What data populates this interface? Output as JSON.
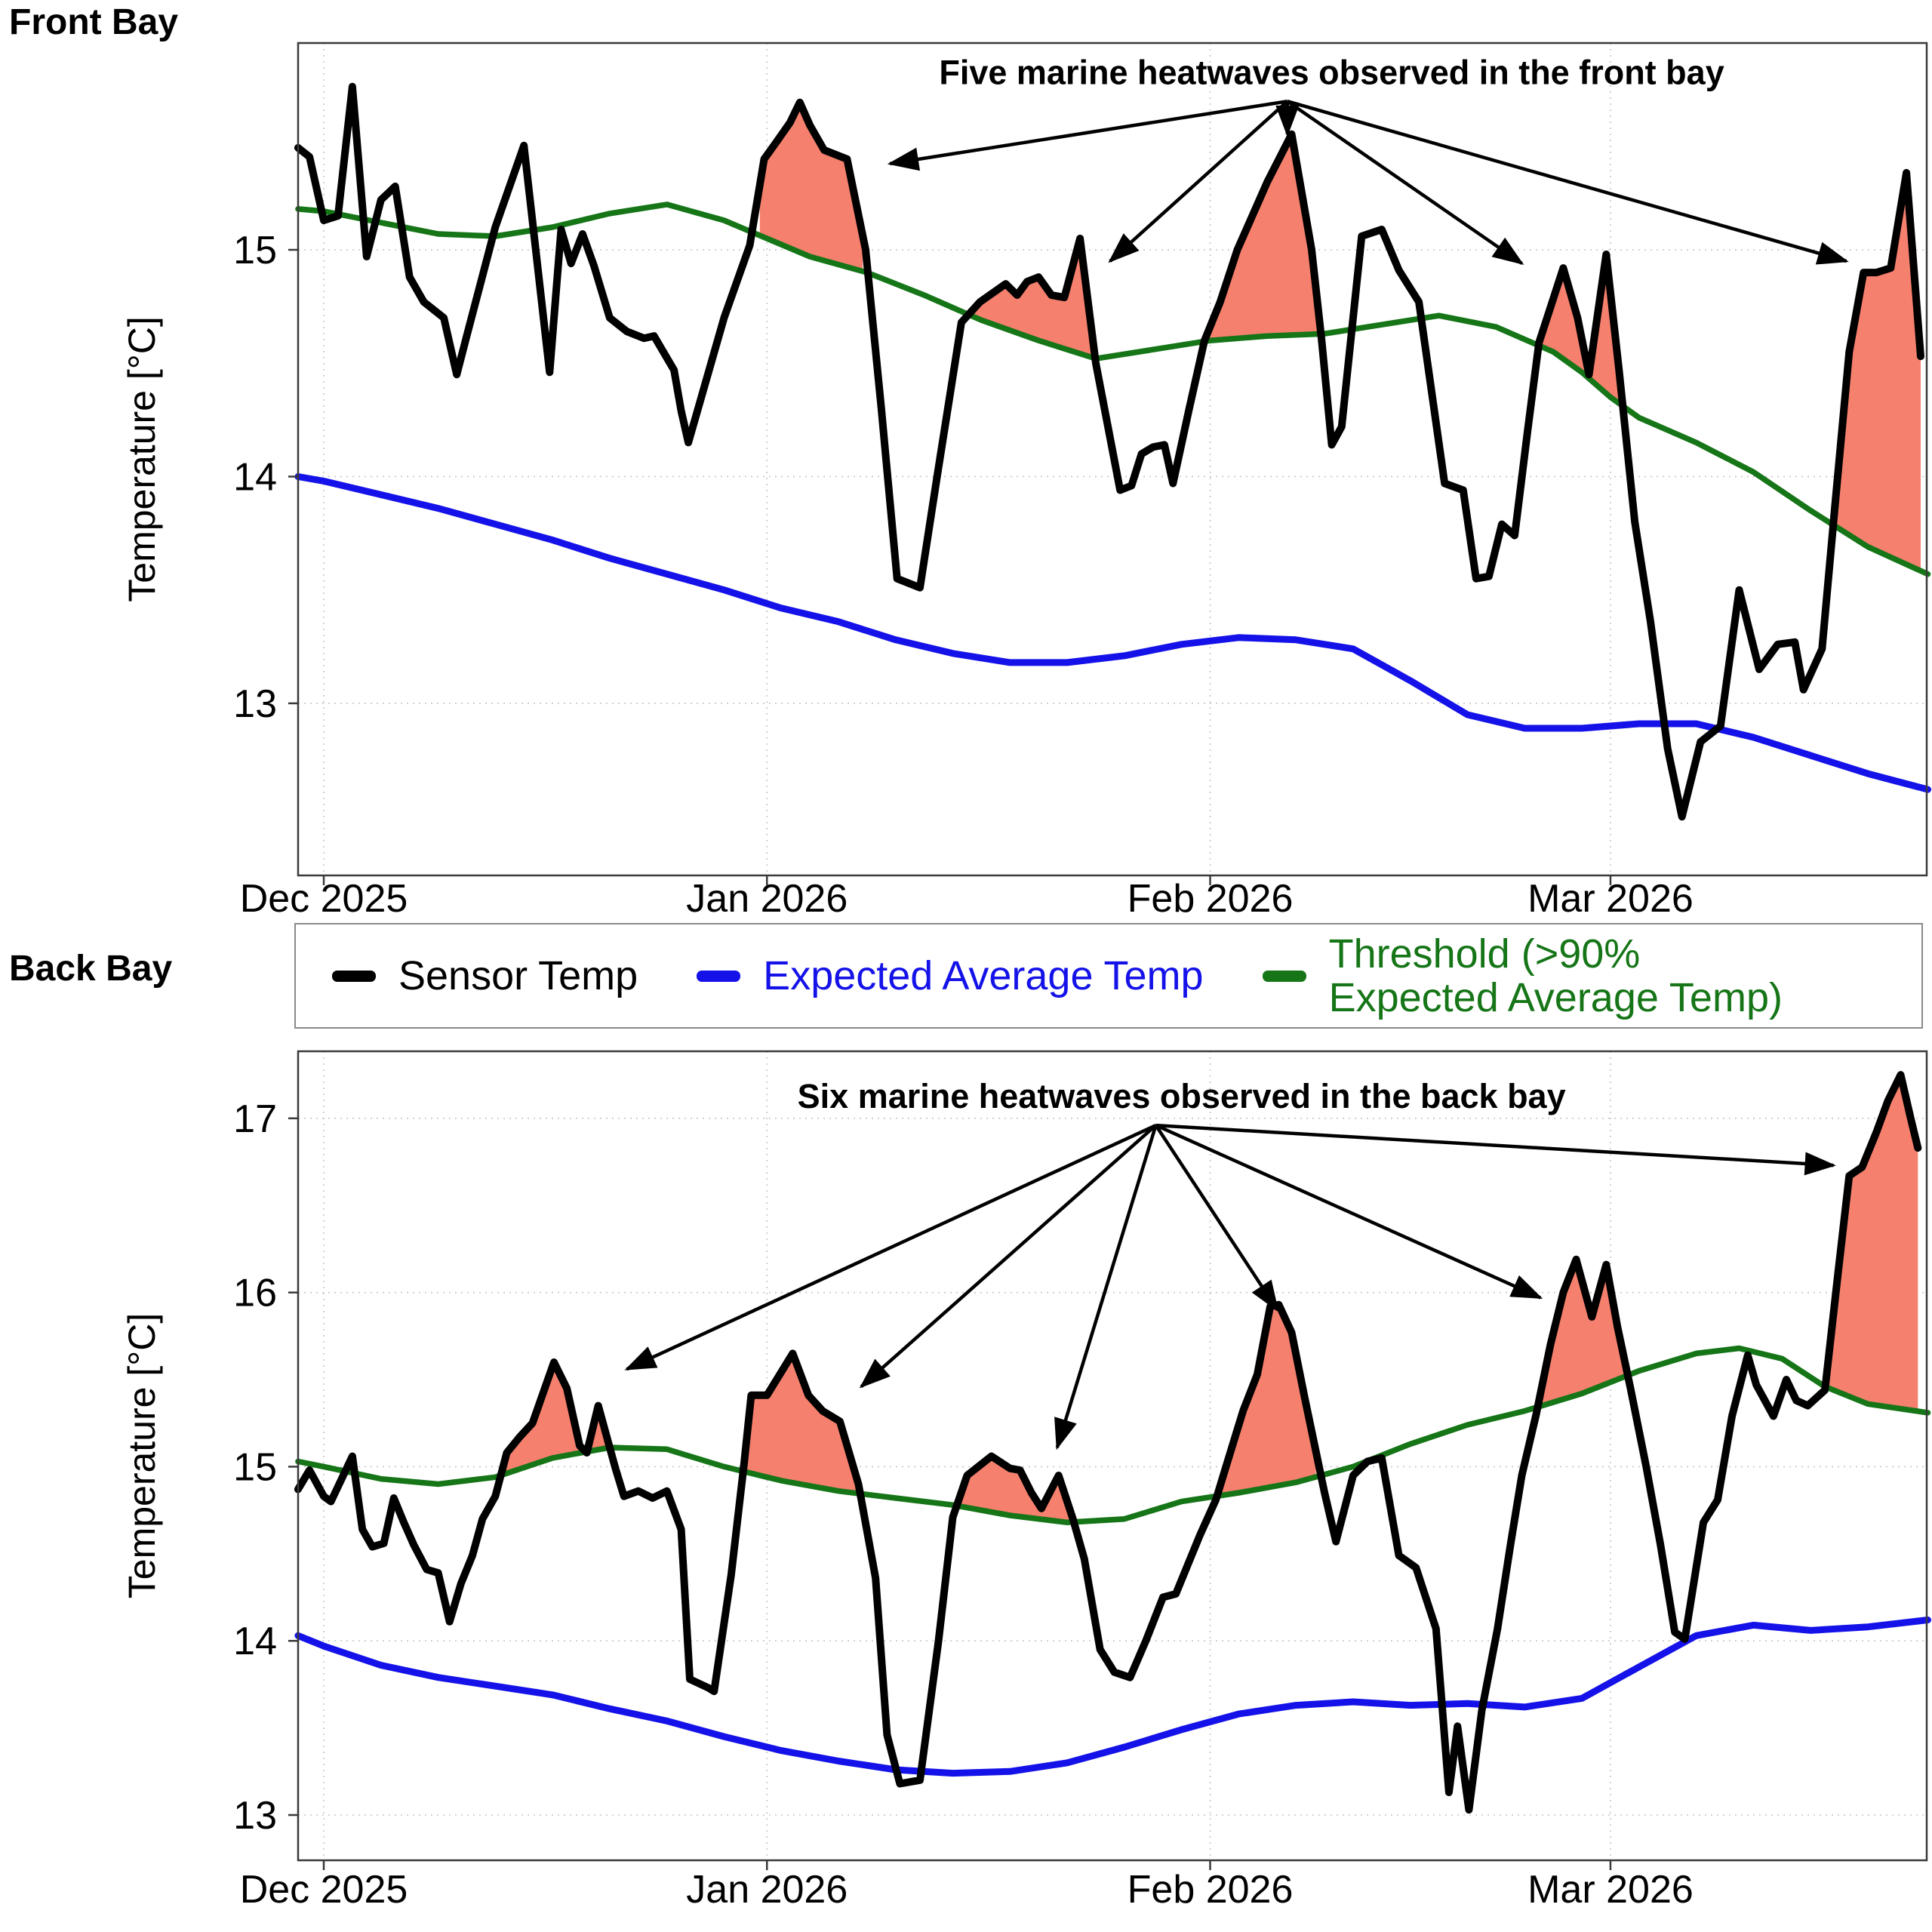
{
  "page": {
    "front_title": "Front Bay",
    "back_title": "Back Bay"
  },
  "legend": {
    "items": [
      {
        "label": "Sensor Temp",
        "color": "#000000"
      },
      {
        "label": "Expected Average Temp",
        "color": "#1412E8"
      },
      {
        "label": "Threshold (>90%\nExpected Average Temp)",
        "color": "#157517"
      }
    ]
  },
  "colors": {
    "sensor": "#000000",
    "expected": "#1412E8",
    "threshold": "#157517",
    "heatwave_fill": "#F5806E",
    "grid": "#c6c6c6",
    "border": "#3a3a3a",
    "arrow": "#000000"
  },
  "chart_data": [
    {
      "type": "line",
      "title": "Front Bay",
      "ylabel": "Temperature [°C]",
      "xlabel": "",
      "legend_position": "below",
      "grid": true,
      "xlim_days": [
        -1.795,
        112.12
      ],
      "ylim": [
        12.241,
        15.912
      ],
      "yticks": [
        15,
        14,
        13
      ],
      "xticks": [
        {
          "day": 0,
          "label": "Dec 2025"
        },
        {
          "day": 31,
          "label": "Jan 2026"
        },
        {
          "day": 62,
          "label": "Feb 2026"
        },
        {
          "day": 90,
          "label": "Mar 2026"
        }
      ],
      "annotation": {
        "text": "Five marine heatwaves observed in the front bay",
        "text_pos": [
          70.5,
          15.73
        ],
        "origin": [
          67.4,
          15.655
        ],
        "tips": [
          [
            39.6,
            15.38
          ],
          [
            55.0,
            14.95
          ],
          [
            67.4,
            15.51
          ],
          [
            83.8,
            14.94
          ],
          [
            106.5,
            14.95
          ]
        ]
      },
      "heatwave_intervals": [
        [
          30.5,
          37.75
        ],
        [
          45.3,
          53.9
        ],
        [
          61.8,
          69.7
        ],
        [
          85.0,
          91.1
        ],
        [
          105.5,
          111.7
        ]
      ],
      "series": {
        "sensor": {
          "name": "Sensor Temp",
          "x": [
            -1.8,
            -1,
            0,
            1,
            2,
            3,
            4,
            5,
            6,
            7,
            8.4,
            9.3,
            10,
            12,
            14,
            15.8,
            16.6,
            17.3,
            18.1,
            18.9,
            20,
            21.2,
            22.4,
            23.1,
            24.5,
            25,
            25.5,
            28,
            29.8,
            30.8,
            31.6,
            32.6,
            33.3,
            34,
            35,
            36.6,
            37.9,
            39,
            40.1,
            41.7,
            42.9,
            44.6,
            45.9,
            47.7,
            48.5,
            49.2,
            50,
            50.9,
            51.8,
            52.9,
            54,
            55.7,
            56.5,
            57.2,
            58,
            58.8,
            59.4,
            60.5,
            61.6,
            62.7,
            63.9,
            66,
            67.7,
            69.1,
            69.8,
            70.5,
            71.2,
            72.6,
            74,
            75.2,
            76.6,
            78.4,
            79.7,
            80.6,
            81.5,
            82.4,
            83.3,
            84.2,
            85,
            86.7,
            87.7,
            88.5,
            89.7,
            90.6,
            91.7,
            92.8,
            94,
            95,
            96.3,
            97.7,
            99,
            100.4,
            101.7,
            102.9,
            103.5,
            104.8,
            105.7,
            106.7,
            107.7,
            108.6,
            109.6,
            110.7,
            111.7
          ],
          "y": [
            15.45,
            15.41,
            15.13,
            15.15,
            15.72,
            14.97,
            15.22,
            15.28,
            14.88,
            14.77,
            14.7,
            14.45,
            14.62,
            15.1,
            15.46,
            14.46,
            15.09,
            14.94,
            15.07,
            14.93,
            14.7,
            14.64,
            14.61,
            14.62,
            14.47,
            14.29,
            14.15,
            14.7,
            15.02,
            15.4,
            15.47,
            15.56,
            15.65,
            15.55,
            15.44,
            15.4,
            15.0,
            14.3,
            13.55,
            13.51,
            14.0,
            14.68,
            14.77,
            14.85,
            14.8,
            14.86,
            14.88,
            14.8,
            14.79,
            15.05,
            14.5,
            13.94,
            13.96,
            14.1,
            14.13,
            14.14,
            13.97,
            14.29,
            14.6,
            14.77,
            15.0,
            15.3,
            15.51,
            15.0,
            14.6,
            14.14,
            14.22,
            15.06,
            15.09,
            14.91,
            14.77,
            13.97,
            13.94,
            13.55,
            13.56,
            13.79,
            13.74,
            14.2,
            14.59,
            14.92,
            14.7,
            14.45,
            14.98,
            14.47,
            13.8,
            13.36,
            12.8,
            12.5,
            12.83,
            12.9,
            13.5,
            13.15,
            13.26,
            13.27,
            13.06,
            13.24,
            13.87,
            14.55,
            14.9,
            14.9,
            14.92,
            15.34,
            14.53
          ]
        },
        "expected": {
          "name": "Expected Average Temp",
          "x": [
            -1.8,
            0,
            4,
            8,
            12,
            16,
            20,
            24,
            28,
            32,
            36,
            40,
            44,
            48,
            52,
            56,
            60,
            64,
            68,
            72,
            76,
            80,
            84,
            88,
            92,
            96,
            100,
            104,
            108,
            112.2
          ],
          "y": [
            14.0,
            13.98,
            13.92,
            13.86,
            13.79,
            13.72,
            13.64,
            13.57,
            13.5,
            13.42,
            13.36,
            13.28,
            13.22,
            13.18,
            13.18,
            13.21,
            13.26,
            13.29,
            13.28,
            13.24,
            13.1,
            12.95,
            12.89,
            12.89,
            12.91,
            12.91,
            12.85,
            12.77,
            12.69,
            12.62
          ]
        },
        "threshold": {
          "name": "Threshold (>90% Expected Average Temp)",
          "x": [
            -1.8,
            0,
            4,
            8,
            12,
            16,
            20,
            24,
            28,
            31,
            34,
            38,
            42,
            46,
            50,
            54,
            58,
            62,
            66,
            70,
            74,
            78,
            82,
            86,
            88,
            90,
            92,
            96,
            100,
            104,
            108,
            112.2
          ],
          "y": [
            15.18,
            15.17,
            15.12,
            15.07,
            15.06,
            15.1,
            15.16,
            15.2,
            15.13,
            15.05,
            14.97,
            14.9,
            14.8,
            14.69,
            14.6,
            14.52,
            14.56,
            14.6,
            14.62,
            14.63,
            14.67,
            14.71,
            14.66,
            14.55,
            14.46,
            14.35,
            14.26,
            14.15,
            14.02,
            13.85,
            13.69,
            13.57
          ]
        }
      }
    },
    {
      "type": "line",
      "title": "Back Bay",
      "ylabel": "Temperature [°C]",
      "xlabel": "",
      "grid": true,
      "xlim_days": [
        -1.795,
        112.12
      ],
      "ylim": [
        12.74,
        17.385
      ],
      "yticks": [
        17,
        16,
        15,
        14,
        13
      ],
      "xticks": [
        {
          "day": 0,
          "label": "Dec 2025"
        },
        {
          "day": 31,
          "label": "Jan 2026"
        },
        {
          "day": 62,
          "label": "Feb 2026"
        },
        {
          "day": 90,
          "label": "Mar 2026"
        }
      ],
      "annotation": {
        "text": "Six marine heatwaves observed in the back bay",
        "text_pos": [
          60,
          17.06
        ],
        "origin": [
          58.2,
          16.96
        ],
        "tips": [
          [
            21.2,
            15.56
          ],
          [
            37.6,
            15.46
          ],
          [
            51.3,
            15.11
          ],
          [
            66.7,
            15.9
          ],
          [
            85.1,
            15.97
          ],
          [
            105.6,
            16.73
          ]
        ]
      },
      "heatwave_intervals": [
        [
          12.6,
          19.9
        ],
        [
          29.2,
          37.75
        ],
        [
          44.5,
          52.6
        ],
        [
          62.8,
          69.4
        ],
        [
          85.1,
          91.0
        ],
        [
          105.3,
          111.5
        ]
      ],
      "series": {
        "sensor": {
          "name": "Sensor Temp",
          "x": [
            -1.8,
            -1,
            0,
            0.5,
            2,
            2.7,
            3.4,
            4.2,
            4.9,
            5.6,
            6.3,
            7.2,
            8,
            8.8,
            9.6,
            10.4,
            11.1,
            12,
            12.8,
            13.7,
            14.6,
            16.1,
            17,
            17.9,
            18.4,
            19.2,
            20.4,
            21,
            22,
            23,
            24,
            25,
            25.6,
            26.9,
            27.3,
            28.5,
            29.4,
            29.9,
            31,
            32.8,
            33.9,
            34.9,
            36.1,
            37.4,
            38.6,
            39.4,
            40.3,
            41.7,
            43,
            44,
            45,
            46.7,
            48,
            48.7,
            49.5,
            50.2,
            51.4,
            52.4,
            53.2,
            54.3,
            55.3,
            56.4,
            57.5,
            58.7,
            59.6,
            60.5,
            61.3,
            62.4,
            63.4,
            64.3,
            65.3,
            66.2,
            66.8,
            67.7,
            68.6,
            70,
            70.8,
            72,
            73,
            74,
            75.2,
            76.4,
            77.8,
            78.7,
            79.3,
            80.1,
            81,
            82.1,
            83,
            83.8,
            84.8,
            85.8,
            86.7,
            87.6,
            88.7,
            89.7,
            90.5,
            91.4,
            92.5,
            93.5,
            94.5,
            95.2,
            96.5,
            97.5,
            98.5,
            99.6,
            100.2,
            101.4,
            102.3,
            103,
            103.8,
            105,
            105.9,
            106.7,
            107.6,
            108.6,
            109.4,
            110.3,
            111,
            111.5
          ],
          "y": [
            14.87,
            14.98,
            14.83,
            14.8,
            15.06,
            14.64,
            14.54,
            14.56,
            14.82,
            14.68,
            14.55,
            14.41,
            14.39,
            14.11,
            14.33,
            14.49,
            14.7,
            14.83,
            15.08,
            15.17,
            15.25,
            15.6,
            15.45,
            15.12,
            15.08,
            15.35,
            14.99,
            14.83,
            14.86,
            14.82,
            14.86,
            14.64,
            13.78,
            13.73,
            13.71,
            14.38,
            15.02,
            15.41,
            15.41,
            15.65,
            15.41,
            15.32,
            15.26,
            14.9,
            14.36,
            13.46,
            13.18,
            13.2,
            14.0,
            14.71,
            14.95,
            15.06,
            14.99,
            14.98,
            14.85,
            14.76,
            14.95,
            14.7,
            14.47,
            13.95,
            13.82,
            13.79,
            14.0,
            14.25,
            14.27,
            14.45,
            14.61,
            14.81,
            15.08,
            15.32,
            15.53,
            15.92,
            15.93,
            15.77,
            15.4,
            14.85,
            14.57,
            14.95,
            15.03,
            15.05,
            14.49,
            14.42,
            14.07,
            13.13,
            13.51,
            13.03,
            13.6,
            14.07,
            14.55,
            14.95,
            15.3,
            15.7,
            16.0,
            16.19,
            15.86,
            16.16,
            15.8,
            15.45,
            15.0,
            14.55,
            14.05,
            14.01,
            14.68,
            14.81,
            15.29,
            15.64,
            15.47,
            15.29,
            15.5,
            15.38,
            15.35,
            15.44,
            16.1,
            16.67,
            16.72,
            16.92,
            17.1,
            17.25,
            17.0,
            16.83
          ]
        },
        "expected": {
          "name": "Expected Average Temp",
          "x": [
            -1.8,
            0,
            4,
            8,
            12,
            16,
            20,
            24,
            28,
            32,
            36,
            40,
            44,
            48,
            52,
            56,
            60,
            64,
            68,
            72,
            76,
            80,
            84,
            88,
            92,
            96,
            100,
            104,
            108,
            112.2
          ],
          "y": [
            14.03,
            13.97,
            13.86,
            13.79,
            13.74,
            13.69,
            13.61,
            13.54,
            13.45,
            13.37,
            13.31,
            13.26,
            13.24,
            13.25,
            13.3,
            13.39,
            13.49,
            13.58,
            13.63,
            13.65,
            13.63,
            13.64,
            13.62,
            13.67,
            13.85,
            14.03,
            14.09,
            14.06,
            14.08,
            14.12
          ]
        },
        "threshold": {
          "name": "Threshold (>90% Expected Average Temp)",
          "x": [
            -1.8,
            0,
            4,
            8,
            12,
            16,
            20,
            24,
            28,
            32,
            36,
            40,
            44,
            48,
            52,
            56,
            60,
            64,
            68,
            72,
            76,
            80,
            84,
            88,
            92,
            96,
            99,
            102,
            105,
            108,
            112.2
          ],
          "y": [
            15.03,
            15.0,
            14.93,
            14.9,
            14.94,
            15.05,
            15.11,
            15.1,
            15.0,
            14.92,
            14.86,
            14.82,
            14.78,
            14.72,
            14.68,
            14.7,
            14.8,
            14.85,
            14.91,
            15.0,
            15.13,
            15.24,
            15.32,
            15.42,
            15.55,
            15.65,
            15.68,
            15.62,
            15.46,
            15.36,
            15.31
          ]
        }
      }
    }
  ]
}
